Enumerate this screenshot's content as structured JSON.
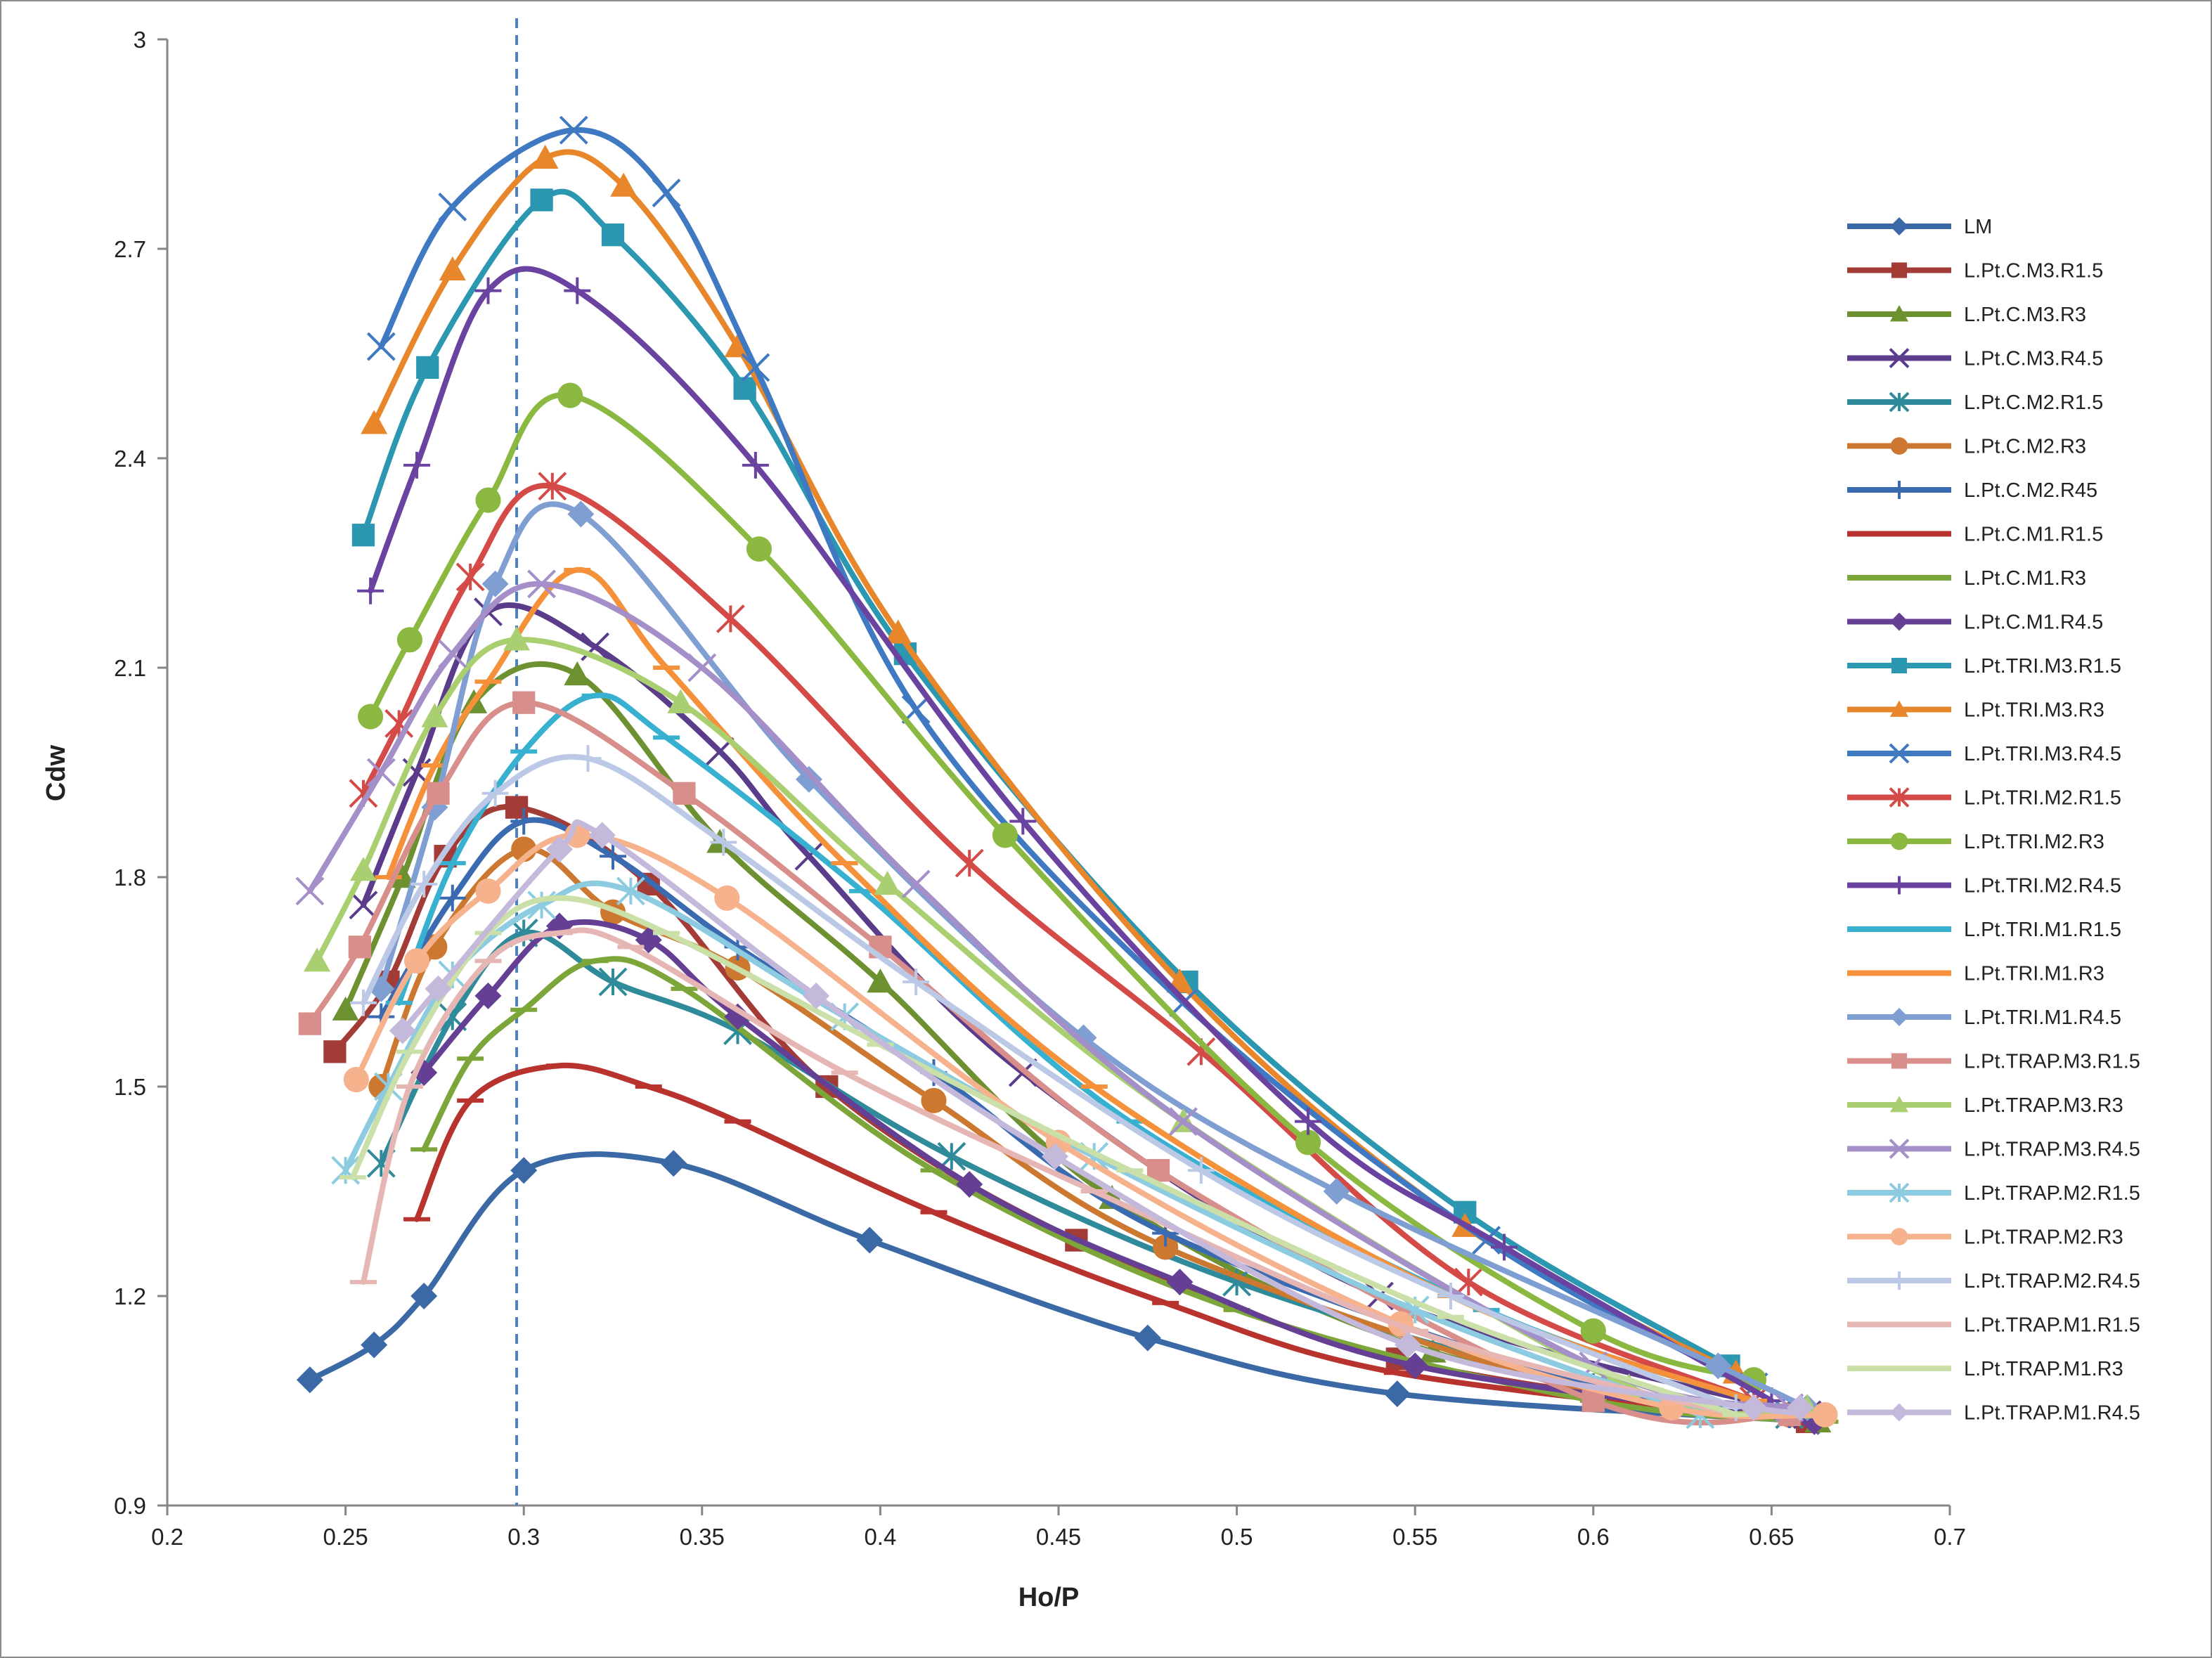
{
  "chart_data": {
    "type": "line",
    "title": "",
    "xlabel": "Ho/P",
    "ylabel": "Cdw",
    "xlim": [
      0.2,
      0.7
    ],
    "ylim": [
      0.9,
      3.0
    ],
    "x_ticks": [
      0.2,
      0.25,
      0.3,
      0.35,
      0.4,
      0.45,
      0.5,
      0.55,
      0.6,
      0.65,
      0.7
    ],
    "x_tick_labels": [
      "0.2",
      "0.25",
      "0.3",
      "0.35",
      "0.4",
      "0.45",
      "0.5",
      "0.55",
      "0.6",
      "0.65",
      "0.7"
    ],
    "y_ticks": [
      0.9,
      1.2,
      1.5,
      1.8,
      2.1,
      2.4,
      2.7,
      3.0
    ],
    "y_tick_labels": [
      "0.9",
      "1.2",
      "1.5",
      "1.8",
      "2.1",
      "2.4",
      "2.7",
      "3"
    ],
    "reference_line": {
      "x": 0.298,
      "style": "dashed"
    },
    "grid": false,
    "legend_position": "right",
    "series": [
      {
        "name": "LM",
        "color": "#3a69a5",
        "marker": "diamond",
        "x": [
          0.24,
          0.258,
          0.272,
          0.3,
          0.342,
          0.397,
          0.475,
          0.545,
          0.663
        ],
        "y": [
          1.08,
          1.13,
          1.2,
          1.38,
          1.39,
          1.28,
          1.14,
          1.06,
          1.02
        ]
      },
      {
        "name": "L.Pt.C.M3.R1.5",
        "color": "#a33b37",
        "marker": "square",
        "x": [
          0.247,
          0.262,
          0.278,
          0.298,
          0.335,
          0.385,
          0.455,
          0.545,
          0.66
        ],
        "y": [
          1.55,
          1.65,
          1.83,
          1.9,
          1.79,
          1.5,
          1.28,
          1.11,
          1.02
        ]
      },
      {
        "name": "L.Pt.C.M3.R3",
        "color": "#6d9131",
        "marker": "triangle",
        "x": [
          0.25,
          0.266,
          0.286,
          0.315,
          0.355,
          0.4,
          0.465,
          0.555,
          0.663
        ],
        "y": [
          1.61,
          1.8,
          2.05,
          2.09,
          1.85,
          1.65,
          1.34,
          1.12,
          1.02
        ]
      },
      {
        "name": "L.Pt.C.M3.R4.5",
        "color": "#5a3c8a",
        "marker": "x",
        "x": [
          0.255,
          0.27,
          0.29,
          0.32,
          0.355,
          0.38,
          0.44,
          0.54,
          0.66
        ],
        "y": [
          1.76,
          1.95,
          2.18,
          2.13,
          1.98,
          1.83,
          1.52,
          1.2,
          1.03
        ]
      },
      {
        "name": "L.Pt.C.M2.R1.5",
        "color": "#2f8a9a",
        "marker": "star",
        "x": [
          0.26,
          0.28,
          0.3,
          0.325,
          0.36,
          0.42,
          0.5,
          0.6,
          0.655
        ],
        "y": [
          1.39,
          1.6,
          1.72,
          1.65,
          1.58,
          1.4,
          1.22,
          1.07,
          1.03
        ]
      },
      {
        "name": "L.Pt.C.M2.R3",
        "color": "#cc7830",
        "marker": "circle",
        "x": [
          0.26,
          0.275,
          0.3,
          0.325,
          0.36,
          0.415,
          0.48,
          0.6,
          0.655
        ],
        "y": [
          1.5,
          1.7,
          1.84,
          1.75,
          1.67,
          1.48,
          1.27,
          1.06,
          1.03
        ]
      },
      {
        "name": "L.Pt.C.M2.R45",
        "color": "#3a6aaf",
        "marker": "plus",
        "x": [
          0.26,
          0.28,
          0.3,
          0.325,
          0.36,
          0.415,
          0.48,
          0.6,
          0.655
        ],
        "y": [
          1.6,
          1.77,
          1.88,
          1.83,
          1.7,
          1.52,
          1.29,
          1.07,
          1.03
        ]
      },
      {
        "name": "L.Pt.C.M1.R1.5",
        "color": "#b8322e",
        "marker": "dash",
        "x": [
          0.27,
          0.285,
          0.31,
          0.335,
          0.36,
          0.415,
          0.48,
          0.545,
          0.66
        ],
        "y": [
          1.31,
          1.48,
          1.53,
          1.5,
          1.45,
          1.32,
          1.19,
          1.09,
          1.02
        ]
      },
      {
        "name": "L.Pt.C.M1.R3",
        "color": "#7ca53a",
        "marker": "dash",
        "x": [
          0.272,
          0.285,
          0.3,
          0.32,
          0.345,
          0.415,
          0.5,
          0.6,
          0.665
        ],
        "y": [
          1.41,
          1.54,
          1.61,
          1.68,
          1.64,
          1.38,
          1.18,
          1.05,
          1.02
        ]
      },
      {
        "name": "L.Pt.C.M1.R4.5",
        "color": "#643f94",
        "marker": "diamond",
        "x": [
          0.272,
          0.29,
          0.31,
          0.335,
          0.36,
          0.425,
          0.484,
          0.55,
          0.662
        ],
        "y": [
          1.52,
          1.63,
          1.73,
          1.71,
          1.6,
          1.36,
          1.22,
          1.1,
          1.02
        ]
      },
      {
        "name": "L.Pt.TRI.M3.R1.5",
        "color": "#2b97b0",
        "marker": "square",
        "x": [
          0.255,
          0.273,
          0.305,
          0.325,
          0.362,
          0.407,
          0.486,
          0.564,
          0.638
        ],
        "y": [
          2.29,
          2.53,
          2.77,
          2.72,
          2.5,
          2.12,
          1.65,
          1.32,
          1.1
        ]
      },
      {
        "name": "L.Pt.TRI.M3.R3",
        "color": "#e8862b",
        "marker": "triangle",
        "x": [
          0.258,
          0.28,
          0.306,
          0.328,
          0.36,
          0.405,
          0.484,
          0.564,
          0.64
        ],
        "y": [
          2.45,
          2.67,
          2.83,
          2.79,
          2.56,
          2.15,
          1.65,
          1.3,
          1.09
        ]
      },
      {
        "name": "L.Pt.TRI.M3.R4.5",
        "color": "#3e79c2",
        "marker": "x",
        "x": [
          0.26,
          0.28,
          0.314,
          0.34,
          0.365,
          0.41,
          0.485,
          0.57,
          0.645
        ],
        "y": [
          2.56,
          2.76,
          2.87,
          2.78,
          2.53,
          2.04,
          1.62,
          1.28,
          1.07
        ]
      },
      {
        "name": "L.Pt.TRI.M2.R1.5",
        "color": "#d44a47",
        "marker": "star",
        "x": [
          0.255,
          0.265,
          0.285,
          0.308,
          0.358,
          0.425,
          0.49,
          0.565,
          0.645
        ],
        "y": [
          1.92,
          2.02,
          2.23,
          2.36,
          2.17,
          1.82,
          1.55,
          1.22,
          1.05
        ]
      },
      {
        "name": "L.Pt.TRI.M2.R3",
        "color": "#8ab840",
        "marker": "circle",
        "x": [
          0.257,
          0.268,
          0.29,
          0.313,
          0.366,
          0.435,
          0.52,
          0.6,
          0.645
        ],
        "y": [
          2.03,
          2.14,
          2.34,
          2.49,
          2.27,
          1.86,
          1.42,
          1.15,
          1.08
        ]
      },
      {
        "name": "L.Pt.TRI.M2.R4.5",
        "color": "#6a43a0",
        "marker": "plus",
        "x": [
          0.257,
          0.27,
          0.29,
          0.315,
          0.365,
          0.44,
          0.52,
          0.575,
          0.65
        ],
        "y": [
          2.21,
          2.39,
          2.64,
          2.64,
          2.39,
          1.88,
          1.45,
          1.27,
          1.05
        ]
      },
      {
        "name": "L.Pt.TRI.M1.R1.5",
        "color": "#38b0d0",
        "marker": "dash",
        "x": [
          0.265,
          0.28,
          0.3,
          0.32,
          0.34,
          0.395,
          0.47,
          0.57,
          0.645
        ],
        "y": [
          1.62,
          1.82,
          1.98,
          2.06,
          2.0,
          1.78,
          1.45,
          1.18,
          1.05
        ]
      },
      {
        "name": "L.Pt.TRI.M1.R3",
        "color": "#f5913a",
        "marker": "dash",
        "x": [
          0.262,
          0.275,
          0.29,
          0.315,
          0.34,
          0.39,
          0.46,
          0.56,
          0.645
        ],
        "y": [
          1.8,
          1.96,
          2.08,
          2.24,
          2.1,
          1.82,
          1.5,
          1.2,
          1.05
        ]
      },
      {
        "name": "L.Pt.TRI.M1.R4.5",
        "color": "#7f9fd3",
        "marker": "diamond",
        "x": [
          0.26,
          0.275,
          0.292,
          0.316,
          0.38,
          0.457,
          0.528,
          0.635,
          0.66
        ],
        "y": [
          1.64,
          1.9,
          2.22,
          2.32,
          1.94,
          1.57,
          1.35,
          1.1,
          1.04
        ]
      },
      {
        "name": "L.Pt.TRAP.M3.R1.5",
        "color": "#d88f8b",
        "marker": "square",
        "x": [
          0.24,
          0.254,
          0.276,
          0.3,
          0.345,
          0.4,
          0.478,
          0.6,
          0.655
        ],
        "y": [
          1.59,
          1.7,
          1.92,
          2.05,
          1.92,
          1.7,
          1.38,
          1.05,
          1.03
        ]
      },
      {
        "name": "L.Pt.TRAP.M3.R3",
        "color": "#a9cf71",
        "marker": "triangle",
        "x": [
          0.242,
          0.255,
          0.275,
          0.298,
          0.344,
          0.402,
          0.485,
          0.61,
          0.66
        ],
        "y": [
          1.68,
          1.81,
          2.03,
          2.14,
          2.05,
          1.79,
          1.45,
          1.07,
          1.04
        ]
      },
      {
        "name": "L.Pt.TRAP.M3.R4.5",
        "color": "#a48fc8",
        "marker": "x",
        "x": [
          0.24,
          0.26,
          0.28,
          0.305,
          0.35,
          0.41,
          0.485,
          0.6,
          0.655
        ],
        "y": [
          1.78,
          1.95,
          2.12,
          2.22,
          2.1,
          1.79,
          1.45,
          1.1,
          1.04
        ]
      },
      {
        "name": "L.Pt.TRAP.M2.R1.5",
        "color": "#8dcbe0",
        "marker": "star",
        "x": [
          0.25,
          0.262,
          0.28,
          0.305,
          0.33,
          0.39,
          0.46,
          0.55,
          0.63
        ],
        "y": [
          1.38,
          1.5,
          1.66,
          1.76,
          1.78,
          1.6,
          1.4,
          1.18,
          1.03
        ]
      },
      {
        "name": "L.Pt.TRAP.M2.R3",
        "color": "#f6b28c",
        "marker": "circle",
        "x": [
          0.253,
          0.27,
          0.29,
          0.315,
          0.357,
          0.45,
          0.546,
          0.622,
          0.665
        ],
        "y": [
          1.51,
          1.68,
          1.78,
          1.86,
          1.77,
          1.42,
          1.16,
          1.04,
          1.03
        ]
      },
      {
        "name": "L.Pt.TRAP.M2.R4.5",
        "color": "#bcc9e6",
        "marker": "plus",
        "x": [
          0.255,
          0.272,
          0.292,
          0.318,
          0.356,
          0.41,
          0.49,
          0.56,
          0.64
        ],
        "y": [
          1.62,
          1.79,
          1.92,
          1.97,
          1.85,
          1.65,
          1.38,
          1.2,
          1.04
        ]
      },
      {
        "name": "L.Pt.TRAP.M1.R1.5",
        "color": "#e6b6b4",
        "marker": "dash",
        "x": [
          0.255,
          0.268,
          0.29,
          0.31,
          0.33,
          0.39,
          0.46,
          0.55,
          0.64
        ],
        "y": [
          1.22,
          1.5,
          1.68,
          1.72,
          1.7,
          1.52,
          1.35,
          1.15,
          1.03
        ]
      },
      {
        "name": "L.Pt.TRAP.M1.R3",
        "color": "#cbe0a8",
        "marker": "dash",
        "x": [
          0.252,
          0.268,
          0.29,
          0.31,
          0.34,
          0.4,
          0.47,
          0.56,
          0.64
        ],
        "y": [
          1.37,
          1.55,
          1.72,
          1.77,
          1.72,
          1.56,
          1.38,
          1.17,
          1.03
        ]
      },
      {
        "name": "L.Pt.TRAP.M1.R4.5",
        "color": "#c4b8db",
        "marker": "diamond",
        "x": [
          0.266,
          0.276,
          0.31,
          0.322,
          0.382,
          0.449,
          0.548,
          0.645,
          0.658
        ],
        "y": [
          1.58,
          1.64,
          1.84,
          1.86,
          1.63,
          1.4,
          1.13,
          1.04,
          1.04
        ]
      }
    ]
  }
}
